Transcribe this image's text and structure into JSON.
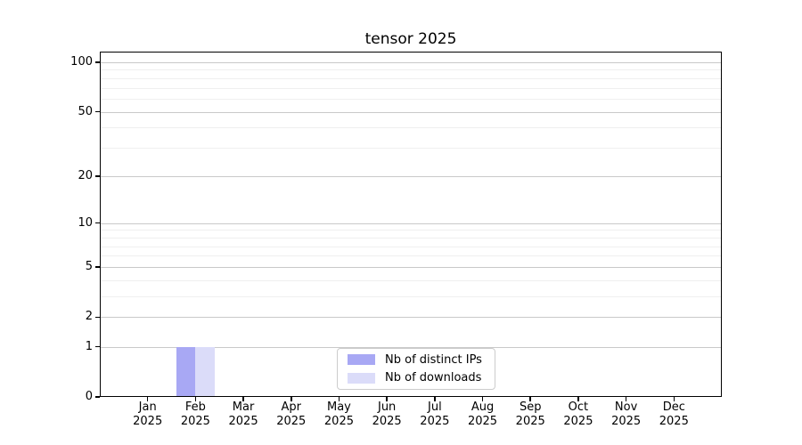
{
  "chart_data": {
    "type": "bar",
    "title": "tensor 2025",
    "x_months": [
      "Jan",
      "Feb",
      "Mar",
      "Apr",
      "May",
      "Jun",
      "Jul",
      "Aug",
      "Sep",
      "Oct",
      "Nov",
      "Dec"
    ],
    "x_year": "2025",
    "series": [
      {
        "name": "Nb of distinct IPs",
        "color": "#a8a8f4",
        "values": [
          0,
          1,
          0,
          0,
          0,
          0,
          0,
          0,
          0,
          0,
          0,
          0
        ]
      },
      {
        "name": "Nb of downloads",
        "color": "#dbdcf9",
        "values": [
          0,
          1,
          0,
          0,
          0,
          0,
          0,
          0,
          0,
          0,
          0,
          0
        ]
      }
    ],
    "yscale": "log1p",
    "ylim": [
      0,
      116
    ],
    "yticks": [
      0,
      1,
      2,
      5,
      10,
      20,
      50,
      100
    ],
    "yticks_minor": [
      3,
      4,
      6,
      7,
      8,
      9,
      30,
      40,
      60,
      70,
      80,
      90
    ],
    "grid": "horizontal",
    "legend_position": "bottom-center"
  },
  "colors": {
    "major_grid": "#c9c9c9",
    "minor_grid": "#efefef",
    "spine": "#000000",
    "text": "#000000",
    "legend_border": "#cccccc"
  }
}
